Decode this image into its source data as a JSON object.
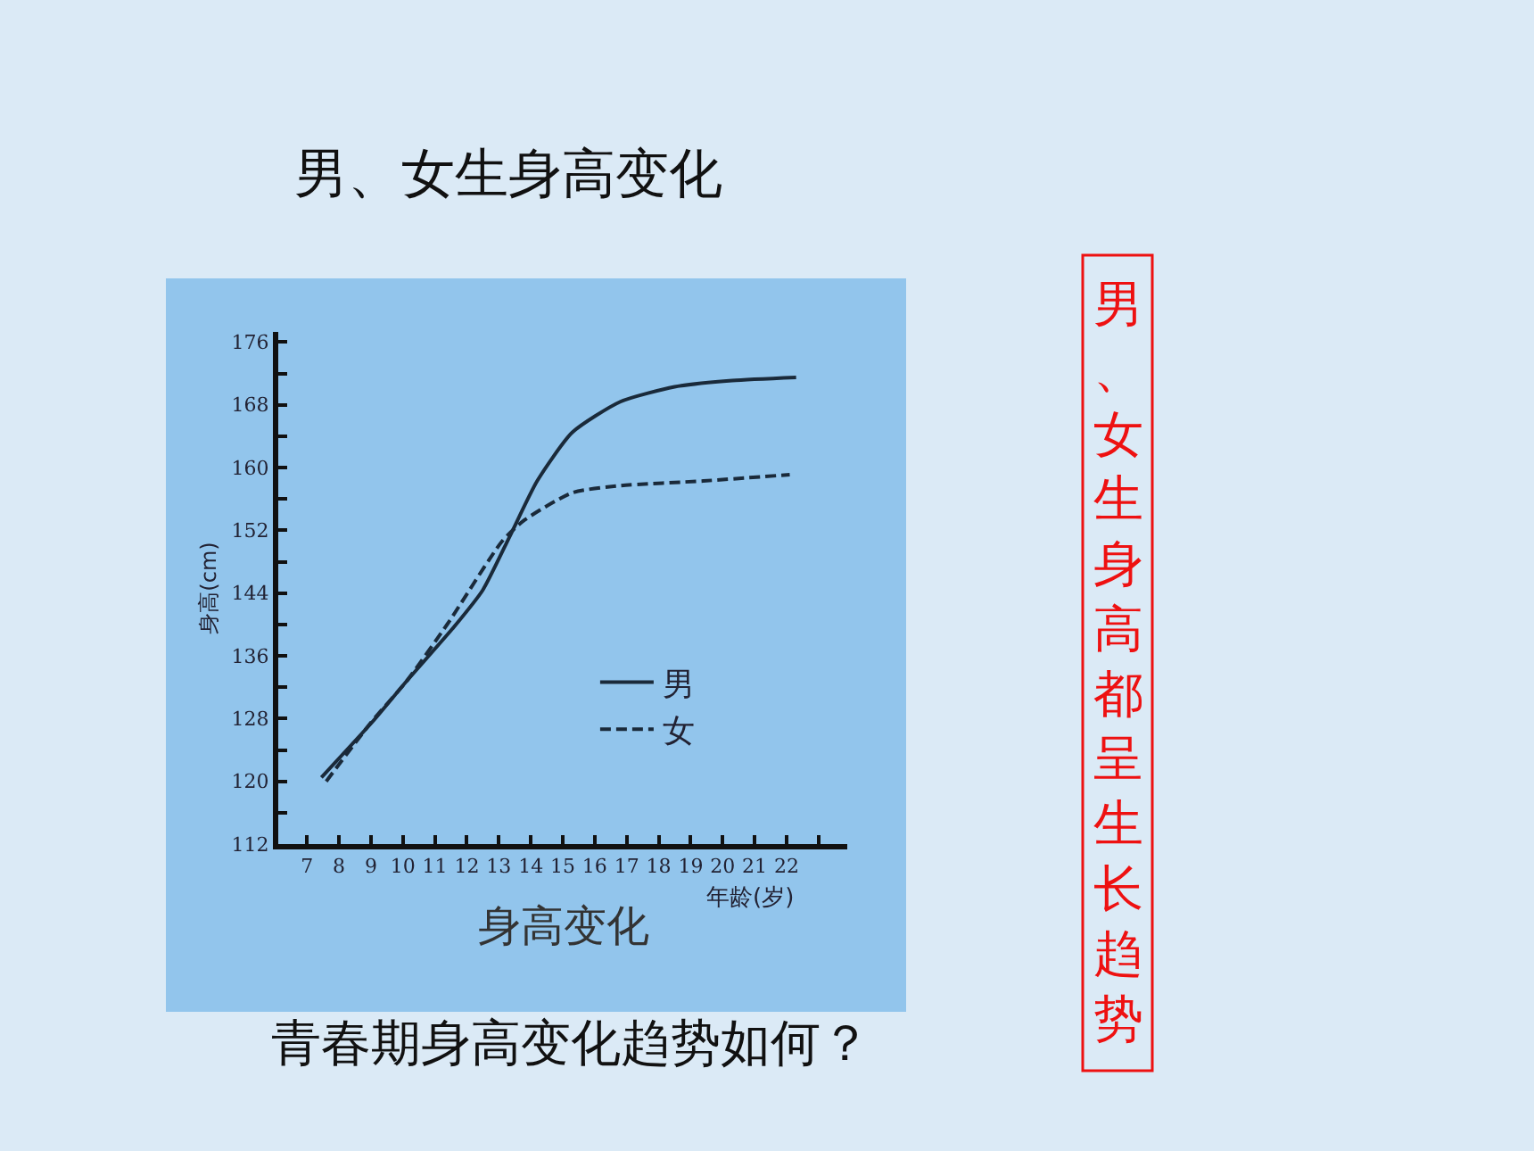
{
  "chart_data": {
    "type": "line",
    "title": "男、女生身高变化",
    "xlabel": "年龄(岁)",
    "ylabel": "身高(cm)",
    "annotations": [
      "身高变化",
      "青春期身高变化趋势如何？",
      "男、女生身高都呈生长趋势"
    ],
    "xlim": [
      6.1,
      23.9
    ],
    "ylim": [
      112,
      177.3
    ],
    "xticks": [
      7,
      8,
      9,
      10,
      11,
      12,
      13,
      14,
      15,
      16,
      17,
      18,
      19,
      20,
      21,
      22,
      {
        "value": 23,
        "label": null
      }
    ],
    "yticks": [
      112,
      {
        "value": 116,
        "label": null
      },
      120,
      {
        "value": 124,
        "label": null
      },
      128,
      {
        "value": 132,
        "label": null
      },
      136,
      {
        "value": 140,
        "label": null
      },
      144,
      {
        "value": 148,
        "label": null
      },
      152,
      {
        "value": 156,
        "label": null
      },
      160,
      {
        "value": 164,
        "label": null
      },
      168,
      {
        "value": 172,
        "label": null
      },
      176
    ],
    "grid": false,
    "legend": "bottom right",
    "marker": "none",
    "series": [
      {
        "name": "男",
        "color": "#1a2a3a",
        "line_style": "solid",
        "x": [
          7.45,
          9.07,
          10.1,
          11.6,
          12.5,
          13.35,
          14.2,
          15.3,
          16.8,
          18.5,
          20.3,
          22.3
        ],
        "values": [
          120.5,
          127.7,
          132.7,
          139.7,
          144.4,
          151.3,
          158.3,
          164.5,
          168.4,
          170.3,
          171.1,
          171.5
        ]
      },
      {
        "name": "女",
        "color": "#1a2a3a",
        "line_style": "dashed",
        "x": [
          7.6,
          9.0,
          10.1,
          11.4,
          13.1,
          13.8,
          15.3,
          16.8,
          19.4,
          22.1
        ],
        "values": [
          120.0,
          127.5,
          132.7,
          140.1,
          150.6,
          153.3,
          156.8,
          157.7,
          158.3,
          159.1
        ]
      }
    ]
  }
}
